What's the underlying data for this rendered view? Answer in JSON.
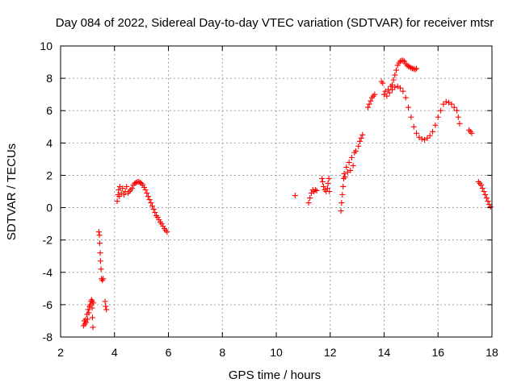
{
  "chart_data": {
    "type": "scatter",
    "title": "Day 084 of 2022, Sidereal Day-to-day VTEC variation (SDTVAR) for receiver mtsr",
    "xlabel": "GPS time / hours",
    "ylabel": "SDTVAR / TECUs",
    "xlim": [
      2,
      18
    ],
    "ylim": [
      -8,
      10
    ],
    "xticks": [
      "2",
      "4",
      "6",
      "8",
      "10",
      "12",
      "14",
      "16",
      "18"
    ],
    "yticks": [
      "-8",
      "-6",
      "-4",
      "-2",
      "0",
      "2",
      "4",
      "6",
      "8",
      "10"
    ],
    "grid": true,
    "marker": "plus",
    "color": "#ff0000",
    "series": [
      {
        "name": "SDTVAR",
        "points": [
          [
            2.85,
            -7.3
          ],
          [
            2.88,
            -7.0
          ],
          [
            2.9,
            -7.2
          ],
          [
            2.93,
            -6.9
          ],
          [
            2.95,
            -7.1
          ],
          [
            2.98,
            -6.6
          ],
          [
            3.0,
            -6.9
          ],
          [
            3.02,
            -6.3
          ],
          [
            3.05,
            -6.5
          ],
          [
            3.07,
            -6.1
          ],
          [
            3.1,
            -6.0
          ],
          [
            3.12,
            -5.8
          ],
          [
            3.15,
            -5.7
          ],
          [
            3.17,
            -6.2
          ],
          [
            3.18,
            -6.8
          ],
          [
            3.2,
            -7.4
          ],
          [
            3.22,
            -5.9
          ],
          [
            3.18,
            -5.8
          ],
          [
            3.42,
            -1.5
          ],
          [
            3.44,
            -1.7
          ],
          [
            3.45,
            -2.2
          ],
          [
            3.47,
            -2.8
          ],
          [
            3.48,
            -3.3
          ],
          [
            3.5,
            -3.8
          ],
          [
            3.52,
            -4.4
          ],
          [
            3.55,
            -4.5
          ],
          [
            3.58,
            -4.4
          ],
          [
            3.65,
            -5.8
          ],
          [
            3.67,
            -6.1
          ],
          [
            3.7,
            -6.3
          ],
          [
            4.1,
            0.4
          ],
          [
            4.13,
            0.8
          ],
          [
            4.15,
            1.1
          ],
          [
            4.18,
            0.7
          ],
          [
            4.2,
            1.3
          ],
          [
            4.25,
            0.9
          ],
          [
            4.3,
            1.2
          ],
          [
            4.35,
            0.8
          ],
          [
            4.4,
            1.0
          ],
          [
            4.45,
            1.3
          ],
          [
            4.5,
            0.9
          ],
          [
            4.55,
            1.0
          ],
          [
            4.6,
            1.1
          ],
          [
            4.65,
            1.2
          ],
          [
            4.7,
            1.4
          ],
          [
            4.75,
            1.5
          ],
          [
            4.8,
            1.55
          ],
          [
            4.85,
            1.6
          ],
          [
            4.9,
            1.6
          ],
          [
            4.95,
            1.55
          ],
          [
            5.0,
            1.5
          ],
          [
            5.05,
            1.4
          ],
          [
            5.1,
            1.25
          ],
          [
            5.15,
            1.1
          ],
          [
            5.2,
            0.9
          ],
          [
            5.25,
            0.7
          ],
          [
            5.3,
            0.5
          ],
          [
            5.35,
            0.3
          ],
          [
            5.4,
            0.1
          ],
          [
            5.45,
            -0.1
          ],
          [
            5.5,
            -0.3
          ],
          [
            5.55,
            -0.5
          ],
          [
            5.6,
            -0.6
          ],
          [
            5.65,
            -0.75
          ],
          [
            5.7,
            -0.9
          ],
          [
            5.75,
            -1.0
          ],
          [
            5.8,
            -1.15
          ],
          [
            5.85,
            -1.3
          ],
          [
            5.9,
            -1.4
          ],
          [
            5.95,
            -1.5
          ],
          [
            10.7,
            0.75
          ],
          [
            11.2,
            0.3
          ],
          [
            11.25,
            0.6
          ],
          [
            11.3,
            0.9
          ],
          [
            11.35,
            1.1
          ],
          [
            11.4,
            1.0
          ],
          [
            11.45,
            1.1
          ],
          [
            11.5,
            1.05
          ],
          [
            11.7,
            1.8
          ],
          [
            11.72,
            1.6
          ],
          [
            11.75,
            1.3
          ],
          [
            11.8,
            1.1
          ],
          [
            11.85,
            1.0
          ],
          [
            11.9,
            1.2
          ],
          [
            11.92,
            1.5
          ],
          [
            11.95,
            1.8
          ],
          [
            11.97,
            1.0
          ],
          [
            12.4,
            -0.2
          ],
          [
            12.42,
            0.3
          ],
          [
            12.45,
            0.8
          ],
          [
            12.48,
            1.3
          ],
          [
            12.5,
            1.8
          ],
          [
            12.52,
            2.1
          ],
          [
            12.55,
            1.9
          ],
          [
            12.6,
            2.5
          ],
          [
            12.65,
            2.2
          ],
          [
            12.7,
            2.8
          ],
          [
            12.75,
            2.3
          ],
          [
            12.8,
            3.1
          ],
          [
            12.85,
            2.6
          ],
          [
            12.9,
            3.4
          ],
          [
            12.95,
            3.5
          ],
          [
            13.05,
            3.8
          ],
          [
            13.1,
            4.1
          ],
          [
            13.15,
            4.3
          ],
          [
            13.2,
            4.5
          ],
          [
            13.4,
            6.2
          ],
          [
            13.45,
            6.4
          ],
          [
            13.5,
            6.6
          ],
          [
            13.55,
            6.8
          ],
          [
            13.6,
            6.9
          ],
          [
            13.65,
            7.0
          ],
          [
            13.9,
            7.8
          ],
          [
            13.95,
            7.7
          ],
          [
            14.0,
            7.0
          ],
          [
            14.05,
            7.2
          ],
          [
            14.1,
            6.9
          ],
          [
            14.15,
            7.3
          ],
          [
            14.2,
            7.1
          ],
          [
            14.25,
            7.5
          ],
          [
            14.3,
            7.6
          ],
          [
            14.35,
            7.9
          ],
          [
            14.4,
            8.2
          ],
          [
            14.45,
            8.5
          ],
          [
            14.5,
            8.8
          ],
          [
            14.55,
            8.95
          ],
          [
            14.6,
            9.05
          ],
          [
            14.65,
            9.1
          ],
          [
            14.7,
            9.1
          ],
          [
            14.75,
            9.05
          ],
          [
            14.8,
            8.9
          ],
          [
            14.85,
            8.8
          ],
          [
            14.9,
            8.75
          ],
          [
            14.95,
            8.7
          ],
          [
            15.0,
            8.65
          ],
          [
            15.05,
            8.6
          ],
          [
            15.1,
            8.6
          ],
          [
            15.15,
            8.55
          ],
          [
            15.2,
            8.6
          ],
          [
            14.3,
            7.3
          ],
          [
            14.4,
            7.45
          ],
          [
            14.5,
            7.5
          ],
          [
            14.6,
            7.4
          ],
          [
            14.7,
            7.2
          ],
          [
            14.8,
            6.8
          ],
          [
            14.9,
            6.2
          ],
          [
            15.0,
            5.6
          ],
          [
            15.1,
            5.0
          ],
          [
            15.2,
            4.6
          ],
          [
            15.3,
            4.35
          ],
          [
            15.4,
            4.25
          ],
          [
            15.5,
            4.2
          ],
          [
            15.6,
            4.3
          ],
          [
            15.7,
            4.45
          ],
          [
            15.8,
            4.7
          ],
          [
            15.9,
            5.1
          ],
          [
            16.0,
            5.6
          ],
          [
            16.1,
            6.0
          ],
          [
            16.2,
            6.4
          ],
          [
            16.3,
            6.55
          ],
          [
            16.4,
            6.5
          ],
          [
            16.5,
            6.4
          ],
          [
            16.6,
            6.2
          ],
          [
            16.7,
            6.0
          ],
          [
            16.75,
            5.6
          ],
          [
            16.8,
            5.2
          ],
          [
            17.15,
            4.8
          ],
          [
            17.2,
            4.7
          ],
          [
            17.25,
            4.6
          ],
          [
            17.5,
            1.6
          ],
          [
            17.55,
            1.5
          ],
          [
            17.6,
            1.4
          ],
          [
            17.65,
            1.2
          ],
          [
            17.7,
            1.0
          ],
          [
            17.75,
            0.8
          ],
          [
            17.8,
            0.6
          ],
          [
            17.85,
            0.4
          ],
          [
            17.9,
            0.2
          ],
          [
            17.95,
            0.05
          ]
        ]
      }
    ]
  }
}
